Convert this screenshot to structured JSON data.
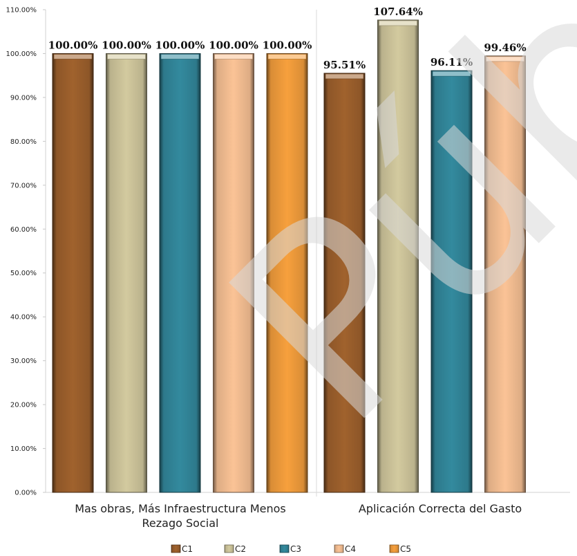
{
  "chart_data": {
    "type": "bar",
    "categories": [
      [
        "Mas obras, Más Infraestructura Menos",
        "Rezago Social"
      ],
      [
        "Aplicación Correcta del Gasto"
      ]
    ],
    "series": [
      {
        "name": "C1",
        "color": "#a0622d",
        "values": [
          100.0,
          95.51
        ],
        "labels": [
          "100.00%",
          "95.51%"
        ]
      },
      {
        "name": "C2",
        "color": "#d3ca9f",
        "values": [
          100.0,
          107.64
        ],
        "labels": [
          "100.00%",
          "107.64%"
        ]
      },
      {
        "name": "C3",
        "color": "#338a9e",
        "values": [
          100.0,
          96.11
        ],
        "labels": [
          "100.00%",
          "96.11%"
        ]
      },
      {
        "name": "C4",
        "color": "#fbc396",
        "values": [
          100.0,
          99.46
        ],
        "labels": [
          "100.00%",
          "99.46%"
        ]
      },
      {
        "name": "C5",
        "color": "#f7a03d",
        "values": [
          100.0,
          null
        ],
        "labels": [
          "100.00%",
          ""
        ]
      }
    ],
    "yticks": [
      "0.00%",
      "10.00%",
      "20.00%",
      "30.00%",
      "40.00%",
      "50.00%",
      "60.00%",
      "70.00%",
      "80.00%",
      "90.00%",
      "100.00%",
      "110.00%"
    ],
    "ylim": [
      0,
      110
    ],
    "grid": false,
    "legend_position": "bottom",
    "watermark": "Pública"
  }
}
